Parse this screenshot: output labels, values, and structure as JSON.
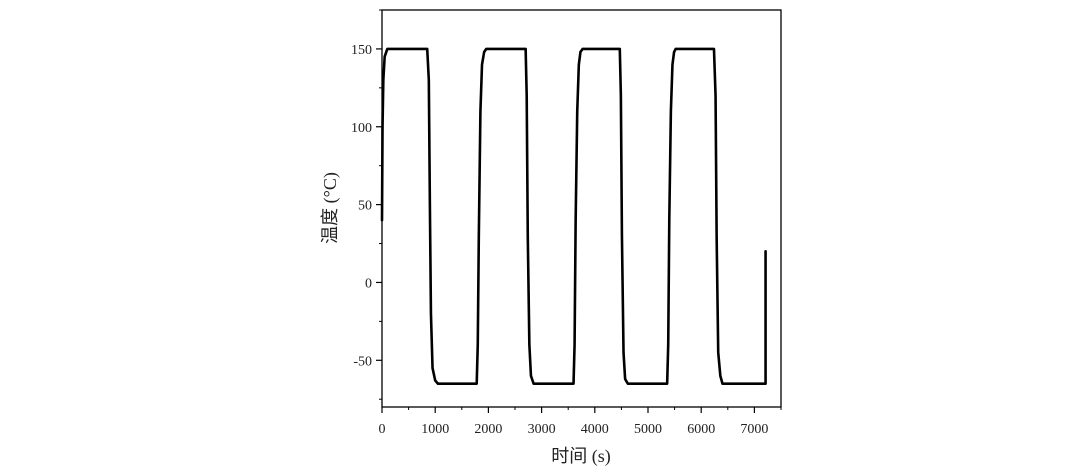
{
  "chart_data": {
    "type": "line",
    "title": "",
    "xlabel": "时间 (s)",
    "ylabel": "温度 (°C)",
    "xlim": [
      0,
      7500
    ],
    "ylim": [
      -80,
      175
    ],
    "x_ticks": [
      0,
      1000,
      2000,
      3000,
      4000,
      5000,
      6000,
      7000
    ],
    "x_tick_labels": [
      "0",
      "1000",
      "2000",
      "3000",
      "4000",
      "5000",
      "6000",
      "7000"
    ],
    "y_ticks": [
      -50,
      0,
      50,
      100,
      150
    ],
    "y_tick_labels": [
      "-50",
      "0",
      "50",
      "100",
      "150"
    ],
    "grid": false,
    "legend": "none",
    "line_color": "#000000",
    "series": [
      {
        "x": [
          0,
          10,
          25,
          50,
          100,
          150,
          850,
          880,
          900,
          920,
          950,
          1000,
          1050,
          1780,
          1800,
          1820,
          1850,
          1880,
          1920,
          1960,
          2000,
          2050,
          2700,
          2720,
          2740,
          2770,
          2800,
          2850,
          3600,
          3620,
          3640,
          3670,
          3700,
          3730,
          3770,
          3820,
          3850,
          4470,
          4490,
          4510,
          4540,
          4570,
          4620,
          5360,
          5380,
          5400,
          5430,
          5460,
          5490,
          5520,
          5580,
          5620,
          6240,
          6270,
          6290,
          6320,
          6360,
          6400,
          6460,
          7200,
          7210,
          7210
        ],
        "y": [
          40,
          100,
          130,
          145,
          150,
          150,
          150,
          130,
          50,
          -20,
          -55,
          -63,
          -65,
          -65,
          -40,
          30,
          110,
          140,
          148,
          150,
          150,
          150,
          150,
          120,
          30,
          -40,
          -60,
          -65,
          -65,
          -40,
          40,
          110,
          140,
          148,
          150,
          150,
          150,
          150,
          120,
          30,
          -45,
          -62,
          -65,
          -65,
          -40,
          40,
          110,
          140,
          148,
          150,
          150,
          150,
          150,
          120,
          30,
          -45,
          -60,
          -65,
          -65,
          -65,
          -65,
          20
        ]
      }
    ]
  }
}
